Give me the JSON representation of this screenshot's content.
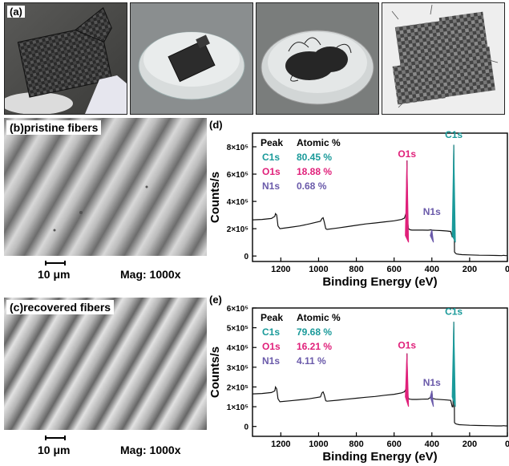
{
  "panel_a": {
    "label": "(a)",
    "photos": [
      "composite-sheet-in-hand",
      "sheet-in-solvent-dish",
      "fibers-released-in-solvent",
      "recovered-fiber-fabric"
    ]
  },
  "panel_b": {
    "label": "(b)pristine fibers",
    "scale_text": "10 μm",
    "mag_text": "Mag: 1000x"
  },
  "panel_c": {
    "label": "(c)recovered fibers",
    "scale_text": "10 μm",
    "mag_text": "Mag: 1000x"
  },
  "colors": {
    "c1s": "#1a9a9a",
    "o1s": "#e0207a",
    "n1s": "#6a5aaa",
    "spectrum": "#111111"
  },
  "chart_data": [
    {
      "type": "line",
      "panel_label": "(d)",
      "xlabel": "Binding Energy (eV)",
      "ylabel": "Counts/s",
      "xlim": [
        1350,
        0
      ],
      "ylim": [
        -40000,
        900000
      ],
      "xticks": [
        1200,
        1000,
        800,
        600,
        400,
        200,
        0
      ],
      "xtick_labels": [
        "1200",
        "1000",
        "800",
        "600",
        "400",
        "200",
        "0"
      ],
      "yticks": [
        0,
        200000,
        400000,
        600000,
        800000
      ],
      "ytick_labels": [
        "0",
        "2×10⁵",
        "4×10⁵",
        "6×10⁵",
        "8×10⁵"
      ],
      "table": {
        "headers": [
          "Peak",
          "Atomic %"
        ],
        "rows": [
          {
            "peak": "C1s",
            "value": "80.45 %",
            "color": "#1a9a9a"
          },
          {
            "peak": "O1s",
            "value": "18.88 %",
            "color": "#e0207a"
          },
          {
            "peak": "N1s",
            "value": "0.68 %",
            "color": "#6a5aaa"
          }
        ]
      },
      "peak_labels": [
        {
          "text": "O1s",
          "x": 532,
          "y": 725000,
          "color": "#e0207a"
        },
        {
          "text": "C1s",
          "x": 284,
          "y": 865000,
          "color": "#1a9a9a"
        },
        {
          "text": "N1s",
          "x": 400,
          "y": 300000,
          "color": "#6a5aaa"
        }
      ],
      "peaks": [
        {
          "name": "O1s",
          "x": 532,
          "height": 700000,
          "color": "#e0207a"
        },
        {
          "name": "C1s",
          "x": 284,
          "height": 815000,
          "color": "#1a9a9a"
        },
        {
          "name": "N1s",
          "x": 400,
          "height": 192000,
          "color": "#6a5aaa"
        }
      ],
      "series": [
        {
          "x": [
            1350,
            1300,
            1250,
            1232,
            1228,
            1222,
            1215,
            1205,
            1150,
            1100,
            1050,
            990,
            982,
            976,
            970,
            962,
            955,
            900,
            850,
            800,
            750,
            700,
            650,
            600,
            560,
            545,
            540,
            535,
            532,
            529,
            524,
            515,
            505,
            480,
            450,
            420,
            403,
            398,
            380,
            350,
            320,
            300,
            292,
            288,
            284,
            280,
            276,
            270,
            255,
            240,
            200,
            150,
            100,
            60,
            30,
            20,
            10,
            0
          ],
          "y": [
            265000,
            268000,
            275000,
            290000,
            310000,
            300000,
            220000,
            200000,
            210000,
            220000,
            235000,
            255000,
            275000,
            280000,
            250000,
            200000,
            195000,
            205000,
            215000,
            225000,
            235000,
            242000,
            250000,
            258000,
            268000,
            278000,
            300000,
            320000,
            700000,
            260000,
            200000,
            192000,
            190000,
            190000,
            190000,
            189000,
            192000,
            189000,
            188000,
            186000,
            183000,
            180000,
            140000,
            140000,
            815000,
            30000,
            22000,
            15000,
            12000,
            10000,
            8000,
            6000,
            5000,
            4000,
            3000,
            5000,
            3000,
            3000
          ]
        }
      ]
    },
    {
      "type": "line",
      "panel_label": "(e)",
      "xlabel": "Binding Energy (eV)",
      "ylabel": "Counts/s",
      "xlim": [
        1350,
        0
      ],
      "ylim": [
        -50000,
        600000
      ],
      "xticks": [
        1200,
        1000,
        800,
        600,
        400,
        200,
        0
      ],
      "xtick_labels": [
        "1200",
        "1000",
        "800",
        "600",
        "400",
        "200",
        "0"
      ],
      "yticks": [
        0,
        100000,
        200000,
        300000,
        400000,
        500000,
        600000
      ],
      "ytick_labels": [
        "0",
        "1×10⁵",
        "2×10⁵",
        "3×10⁵",
        "4×10⁵",
        "5×10⁵",
        "6×10⁵"
      ],
      "table": {
        "headers": [
          "Peak",
          "Atomic %"
        ],
        "rows": [
          {
            "peak": "C1s",
            "value": "79.68 %",
            "color": "#1a9a9a"
          },
          {
            "peak": "O1s",
            "value": "16.21 %",
            "color": "#e0207a"
          },
          {
            "peak": "N1s",
            "value": "4.11 %",
            "color": "#6a5aaa"
          }
        ]
      },
      "peak_labels": [
        {
          "text": "O1s",
          "x": 532,
          "y": 395000,
          "color": "#e0207a"
        },
        {
          "text": "C1s",
          "x": 284,
          "y": 565000,
          "color": "#1a9a9a"
        },
        {
          "text": "N1s",
          "x": 400,
          "y": 205000,
          "color": "#6a5aaa"
        }
      ],
      "peaks": [
        {
          "name": "O1s",
          "x": 532,
          "height": 370000,
          "color": "#e0207a"
        },
        {
          "name": "C1s",
          "x": 284,
          "height": 530000,
          "color": "#1a9a9a"
        },
        {
          "name": "N1s",
          "x": 400,
          "height": 180000,
          "color": "#6a5aaa"
        }
      ],
      "series": [
        {
          "x": [
            1350,
            1300,
            1250,
            1232,
            1228,
            1222,
            1215,
            1205,
            1150,
            1100,
            1050,
            990,
            982,
            976,
            970,
            962,
            955,
            900,
            850,
            800,
            750,
            700,
            650,
            600,
            560,
            545,
            540,
            535,
            532,
            529,
            524,
            515,
            505,
            480,
            450,
            420,
            403,
            400,
            397,
            380,
            350,
            320,
            300,
            292,
            288,
            284,
            280,
            276,
            270,
            255,
            240,
            200,
            150,
            100,
            60,
            30,
            20,
            10,
            0
          ],
          "y": [
            165000,
            167000,
            172000,
            180000,
            200000,
            190000,
            140000,
            125000,
            130000,
            135000,
            140000,
            150000,
            170000,
            175000,
            160000,
            130000,
            128000,
            133000,
            138000,
            143000,
            148000,
            152000,
            158000,
            163000,
            170000,
            176000,
            185000,
            195000,
            370000,
            160000,
            140000,
            138000,
            137000,
            137000,
            138000,
            139000,
            150000,
            180000,
            142000,
            138000,
            136000,
            134000,
            132000,
            100000,
            100000,
            530000,
            20000,
            15000,
            12000,
            9000,
            8000,
            6000,
            5000,
            4000,
            3000,
            3000,
            4000,
            3000,
            3000
          ]
        }
      ]
    }
  ]
}
